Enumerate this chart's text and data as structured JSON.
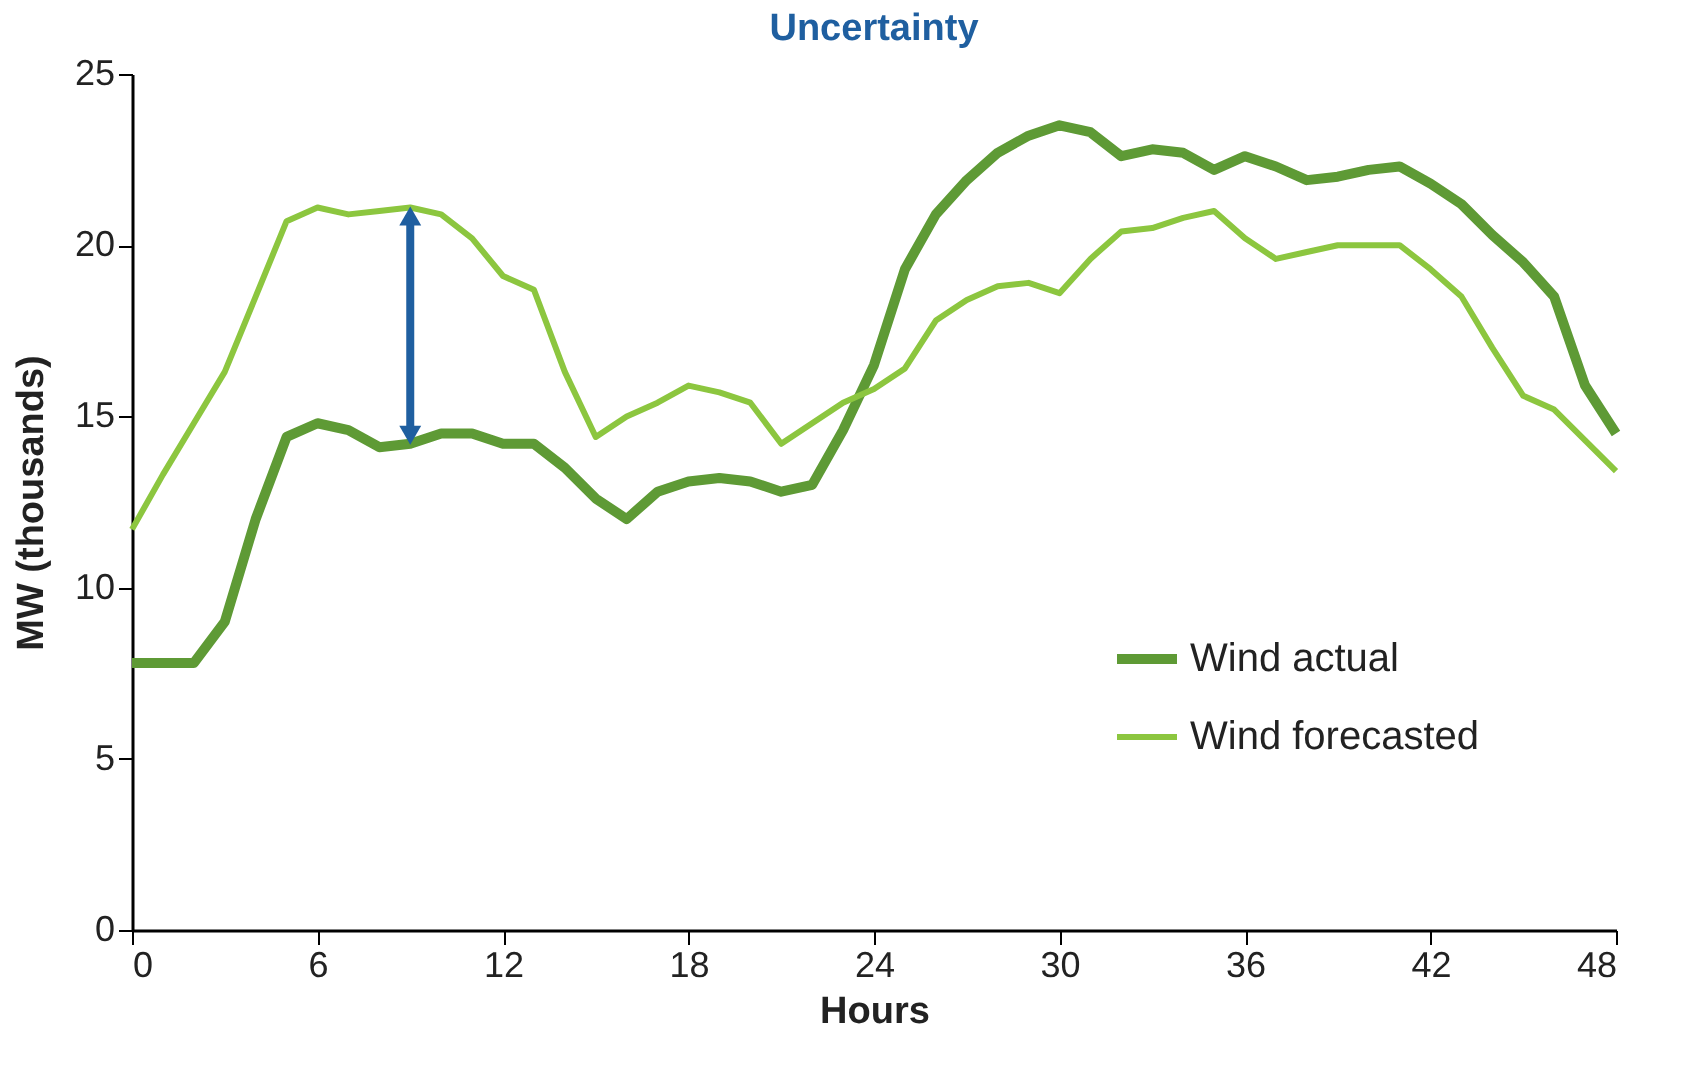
{
  "chart_data": {
    "type": "line",
    "title": "Uncertainty",
    "xlabel": "Hours",
    "ylabel": "MW (thousands)",
    "x": [
      0,
      1,
      2,
      3,
      4,
      5,
      6,
      7,
      8,
      9,
      10,
      11,
      12,
      13,
      14,
      15,
      16,
      17,
      18,
      19,
      20,
      21,
      22,
      23,
      24,
      25,
      26,
      27,
      28,
      29,
      30,
      31,
      32,
      33,
      34,
      35,
      36,
      37,
      38,
      39,
      40,
      41,
      42,
      43,
      44,
      45,
      46,
      47,
      48
    ],
    "series": [
      {
        "name": "Wind actual",
        "color": "#5e9a35",
        "values": [
          7.8,
          7.8,
          7.8,
          9.0,
          12.0,
          14.4,
          14.8,
          14.6,
          14.1,
          14.2,
          14.5,
          14.5,
          14.2,
          14.2,
          13.5,
          12.6,
          12.0,
          12.8,
          13.1,
          13.2,
          13.1,
          12.8,
          13.0,
          14.6,
          16.5,
          19.3,
          20.9,
          21.9,
          22.7,
          23.2,
          23.5,
          23.3,
          22.6,
          22.8,
          22.7,
          22.2,
          22.6,
          22.3,
          21.9,
          22.0,
          22.2,
          22.3,
          21.8,
          21.2,
          20.3,
          19.5,
          18.5,
          15.9,
          14.5
        ]
      },
      {
        "name": "Wind forecasted",
        "color": "#8cc63f",
        "values": [
          11.7,
          13.3,
          14.8,
          16.3,
          18.5,
          20.7,
          21.1,
          20.9,
          21.0,
          21.1,
          20.9,
          20.2,
          19.1,
          18.7,
          16.3,
          14.4,
          15.0,
          15.4,
          15.9,
          15.7,
          15.4,
          14.2,
          14.8,
          15.4,
          15.8,
          16.4,
          17.8,
          18.4,
          18.8,
          18.9,
          18.6,
          19.6,
          20.4,
          20.5,
          20.8,
          21.0,
          20.2,
          19.6,
          19.8,
          20.0,
          20.0,
          20.0,
          19.3,
          18.5,
          17.0,
          15.6,
          15.2,
          14.3,
          13.4
        ]
      }
    ],
    "xlim": [
      0,
      48
    ],
    "xticks": [
      0,
      6,
      12,
      18,
      24,
      30,
      36,
      42,
      48
    ],
    "ylim": [
      0,
      25
    ],
    "yticks": [
      0,
      5,
      10,
      15,
      20,
      25
    ],
    "grid": false,
    "legend": "bottom right",
    "marker": "none",
    "line_style": "solid"
  }
}
